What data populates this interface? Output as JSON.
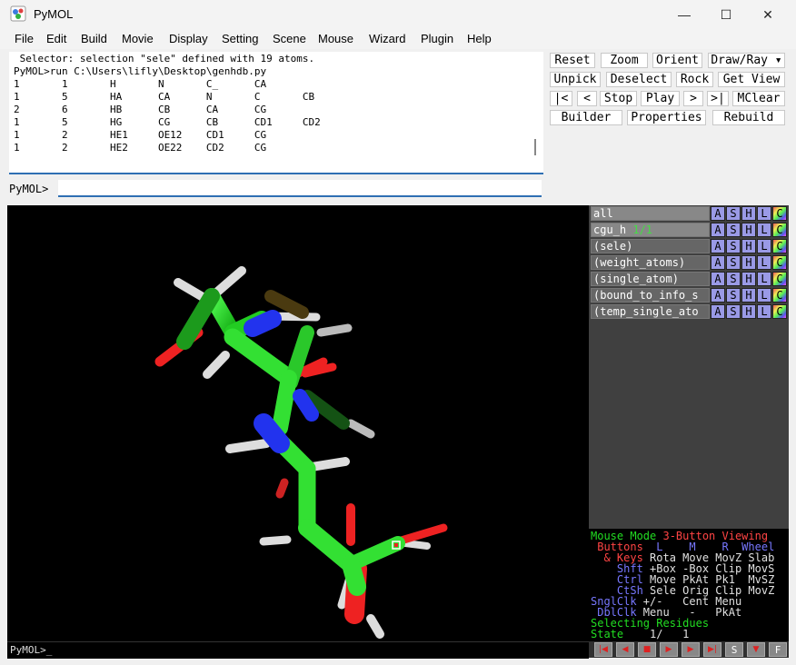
{
  "window": {
    "title": "PyMOL",
    "minimize": "—",
    "maximize": "☐",
    "close": "✕"
  },
  "menu": [
    "File",
    "Edit",
    "Build",
    "Movie",
    "Display",
    "Setting",
    "Scene",
    "Mouse",
    "Wizard",
    "Plugin",
    "Help"
  ],
  "console": {
    "lines": [
      " Selector: selection \"sele\" defined with 19 atoms.",
      "PyMOL>run C:\\Users\\lifly\\Desktop\\genhdb.py",
      "1       1       H       N       C_      CA",
      "1       5       HA      CA      N       C       CB",
      "2       6       HB      CB      CA      CG",
      "1       5       HG      CG      CB      CD1     CD2",
      "1       2       HE1     OE12    CD1     CG",
      "1       2       HE2     OE22    CD2     CG"
    ]
  },
  "command": {
    "prompt": "PyMOL>",
    "value": ""
  },
  "buttons": {
    "row1": [
      "Reset",
      "Zoom",
      "Orient",
      "Draw/Ray ▾"
    ],
    "row2": [
      "Unpick",
      "Deselect",
      "Rock",
      "Get View"
    ],
    "row3": [
      "|<",
      "<",
      "Stop",
      "Play",
      ">",
      ">|",
      "MClear"
    ],
    "row4": [
      "Builder",
      "Properties",
      "Rebuild"
    ]
  },
  "objects": [
    {
      "name": "all",
      "extra": ""
    },
    {
      "name": "cgu_h",
      "extra": "1/1"
    },
    {
      "name": "(sele)",
      "extra": ""
    },
    {
      "name": "(weight_atoms)",
      "extra": ""
    },
    {
      "name": "(single_atom)",
      "extra": ""
    },
    {
      "name": "(bound_to_info_s",
      "extra": ""
    },
    {
      "name": "(temp_single_ato",
      "extra": ""
    }
  ],
  "ashlc": [
    "A",
    "S",
    "H",
    "L",
    "C"
  ],
  "mouse": {
    "l1_a": "Mouse Mode ",
    "l1_b": "3-Button Viewing",
    "l2_a": " Buttons",
    "l2_b": "  L    M    R  Wheel",
    "l3_a": "  & Keys",
    "l3_b": " Rota Move MovZ Slab",
    "l4_a": "    Shft",
    "l4_b": " +Box -Box Clip MovS",
    "l5_a": "    Ctrl",
    "l5_b": " Move PkAt Pk1  MvSZ",
    "l6_a": "    CtSh",
    "l6_b": " Sele Orig Clip MovZ",
    "l7_a": "SnglClk",
    "l7_b": " +/-   Cent Menu",
    "l8_a": " DblClk",
    "l8_b": " Menu   -   PkAt",
    "l9": "Selecting Residues",
    "l10_a": "State",
    "l10_b": "    1/   1"
  },
  "viewer_prompt": "PyMOL>_",
  "playback": [
    "|◀",
    "◀",
    "■",
    "▶",
    "▶",
    "▶|",
    "S",
    "▼",
    "F"
  ],
  "colors": {
    "carbon": "#22dd22",
    "nitrogen": "#2233ee",
    "oxygen": "#ee2222",
    "hydrogen": "#dddddd"
  }
}
